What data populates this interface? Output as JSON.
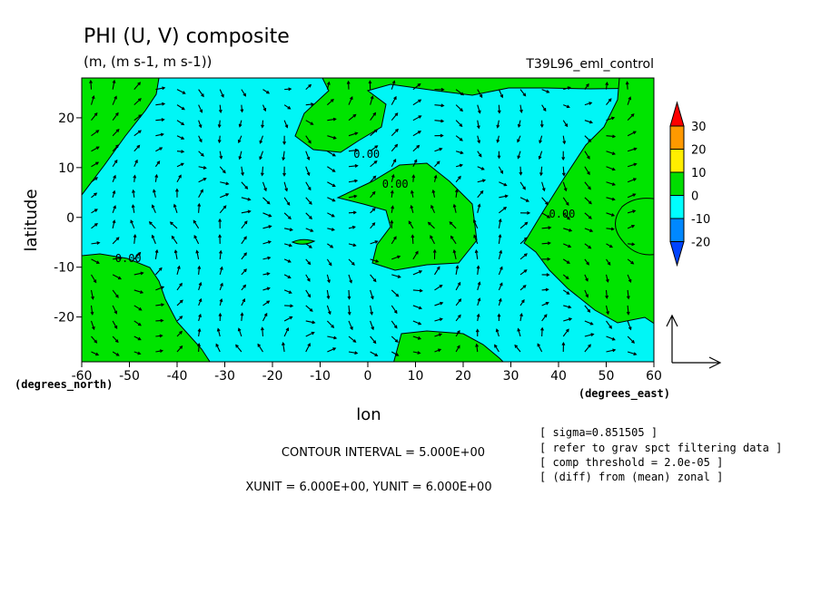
{
  "chart_data": {
    "type": "contour",
    "title": "PHI (U, V) composite",
    "subtitle": "(m, (m s-1, m s-1))",
    "experiment": "T39L96_eml_control",
    "xlabel": "lon",
    "ylabel": "latitude",
    "x_unit_label": "(degrees_east)",
    "y_unit_label": "(degrees_north)",
    "xlim": [
      -60,
      60
    ],
    "ylim": [
      -29,
      28
    ],
    "x_ticks": [
      -60,
      -50,
      -40,
      -30,
      -20,
      -10,
      0,
      10,
      20,
      30,
      40,
      50,
      60
    ],
    "y_ticks": [
      -20,
      -10,
      0,
      10,
      20
    ],
    "contour_labels": [
      {
        "text": "0.00",
        "lon": -3,
        "lat": 12
      },
      {
        "text": "0.00",
        "lon": 3,
        "lat": 6
      },
      {
        "text": "0.00",
        "lon": 38,
        "lat": 0
      },
      {
        "text": "0.00",
        "lon": -53,
        "lat": -9
      }
    ],
    "colorbar": {
      "levels": [
        30,
        20,
        10,
        0,
        -10,
        -20
      ],
      "colors": [
        "#ff0000",
        "#ff9900",
        "#ffee00",
        "#00dd00",
        "#00ffff",
        "#0088ff",
        "#0044ff"
      ]
    },
    "fill_colors": {
      "negative": "#00f6f6",
      "positive": "#00e400"
    },
    "contour_interval": "CONTOUR INTERVAL = 5.000E+00",
    "vector_units": "XUNIT = 6.000E+00, YUNIT = 6.000E+00",
    "notes": [
      "[ sigma=0.851505 ]",
      "[ refer to grav spct filtering data ]",
      "[ comp threshold = 2.0e-05 ]",
      "[ (diff) from (mean) zonal ]"
    ]
  }
}
